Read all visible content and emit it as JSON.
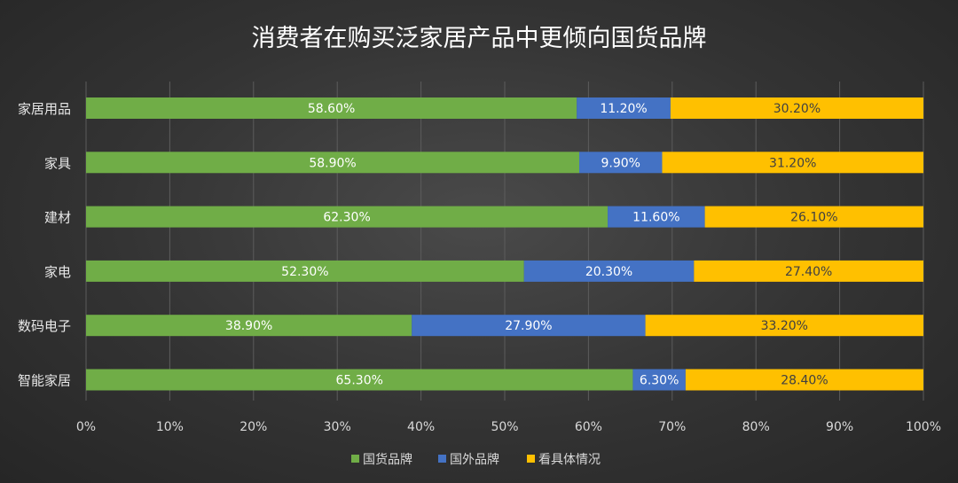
{
  "chart_data": {
    "type": "bar",
    "orientation": "horizontal",
    "stacked": true,
    "title": "消费者在购买泛家居产品中更倾向国货品牌",
    "categories": [
      "家居用品",
      "家具",
      "建材",
      "家电",
      "数码电子",
      "智能家居"
    ],
    "series": [
      {
        "name": "国货品牌",
        "color": "#70AD47",
        "values": [
          58.6,
          58.9,
          62.3,
          52.3,
          38.9,
          65.3
        ],
        "labels": [
          "58.60%",
          "58.90%",
          "62.30%",
          "52.30%",
          "38.90%",
          "65.30%"
        ]
      },
      {
        "name": "国外品牌",
        "color": "#4472C4",
        "values": [
          11.2,
          9.9,
          11.6,
          20.3,
          27.9,
          6.3
        ],
        "labels": [
          "11.20%",
          "9.90%",
          "11.60%",
          "20.30%",
          "27.90%",
          "6.30%"
        ]
      },
      {
        "name": "看具体情况",
        "color": "#FFC000",
        "values": [
          30.2,
          31.2,
          26.1,
          27.4,
          33.2,
          28.4
        ],
        "labels": [
          "30.20%",
          "31.20%",
          "26.10%",
          "27.40%",
          "33.20%",
          "28.40%"
        ]
      }
    ],
    "xlim": [
      0,
      100
    ],
    "xticks": [
      "0%",
      "10%",
      "20%",
      "30%",
      "40%",
      "50%",
      "60%",
      "70%",
      "80%",
      "90%",
      "100%"
    ],
    "grid": true,
    "legend": "bottom"
  }
}
